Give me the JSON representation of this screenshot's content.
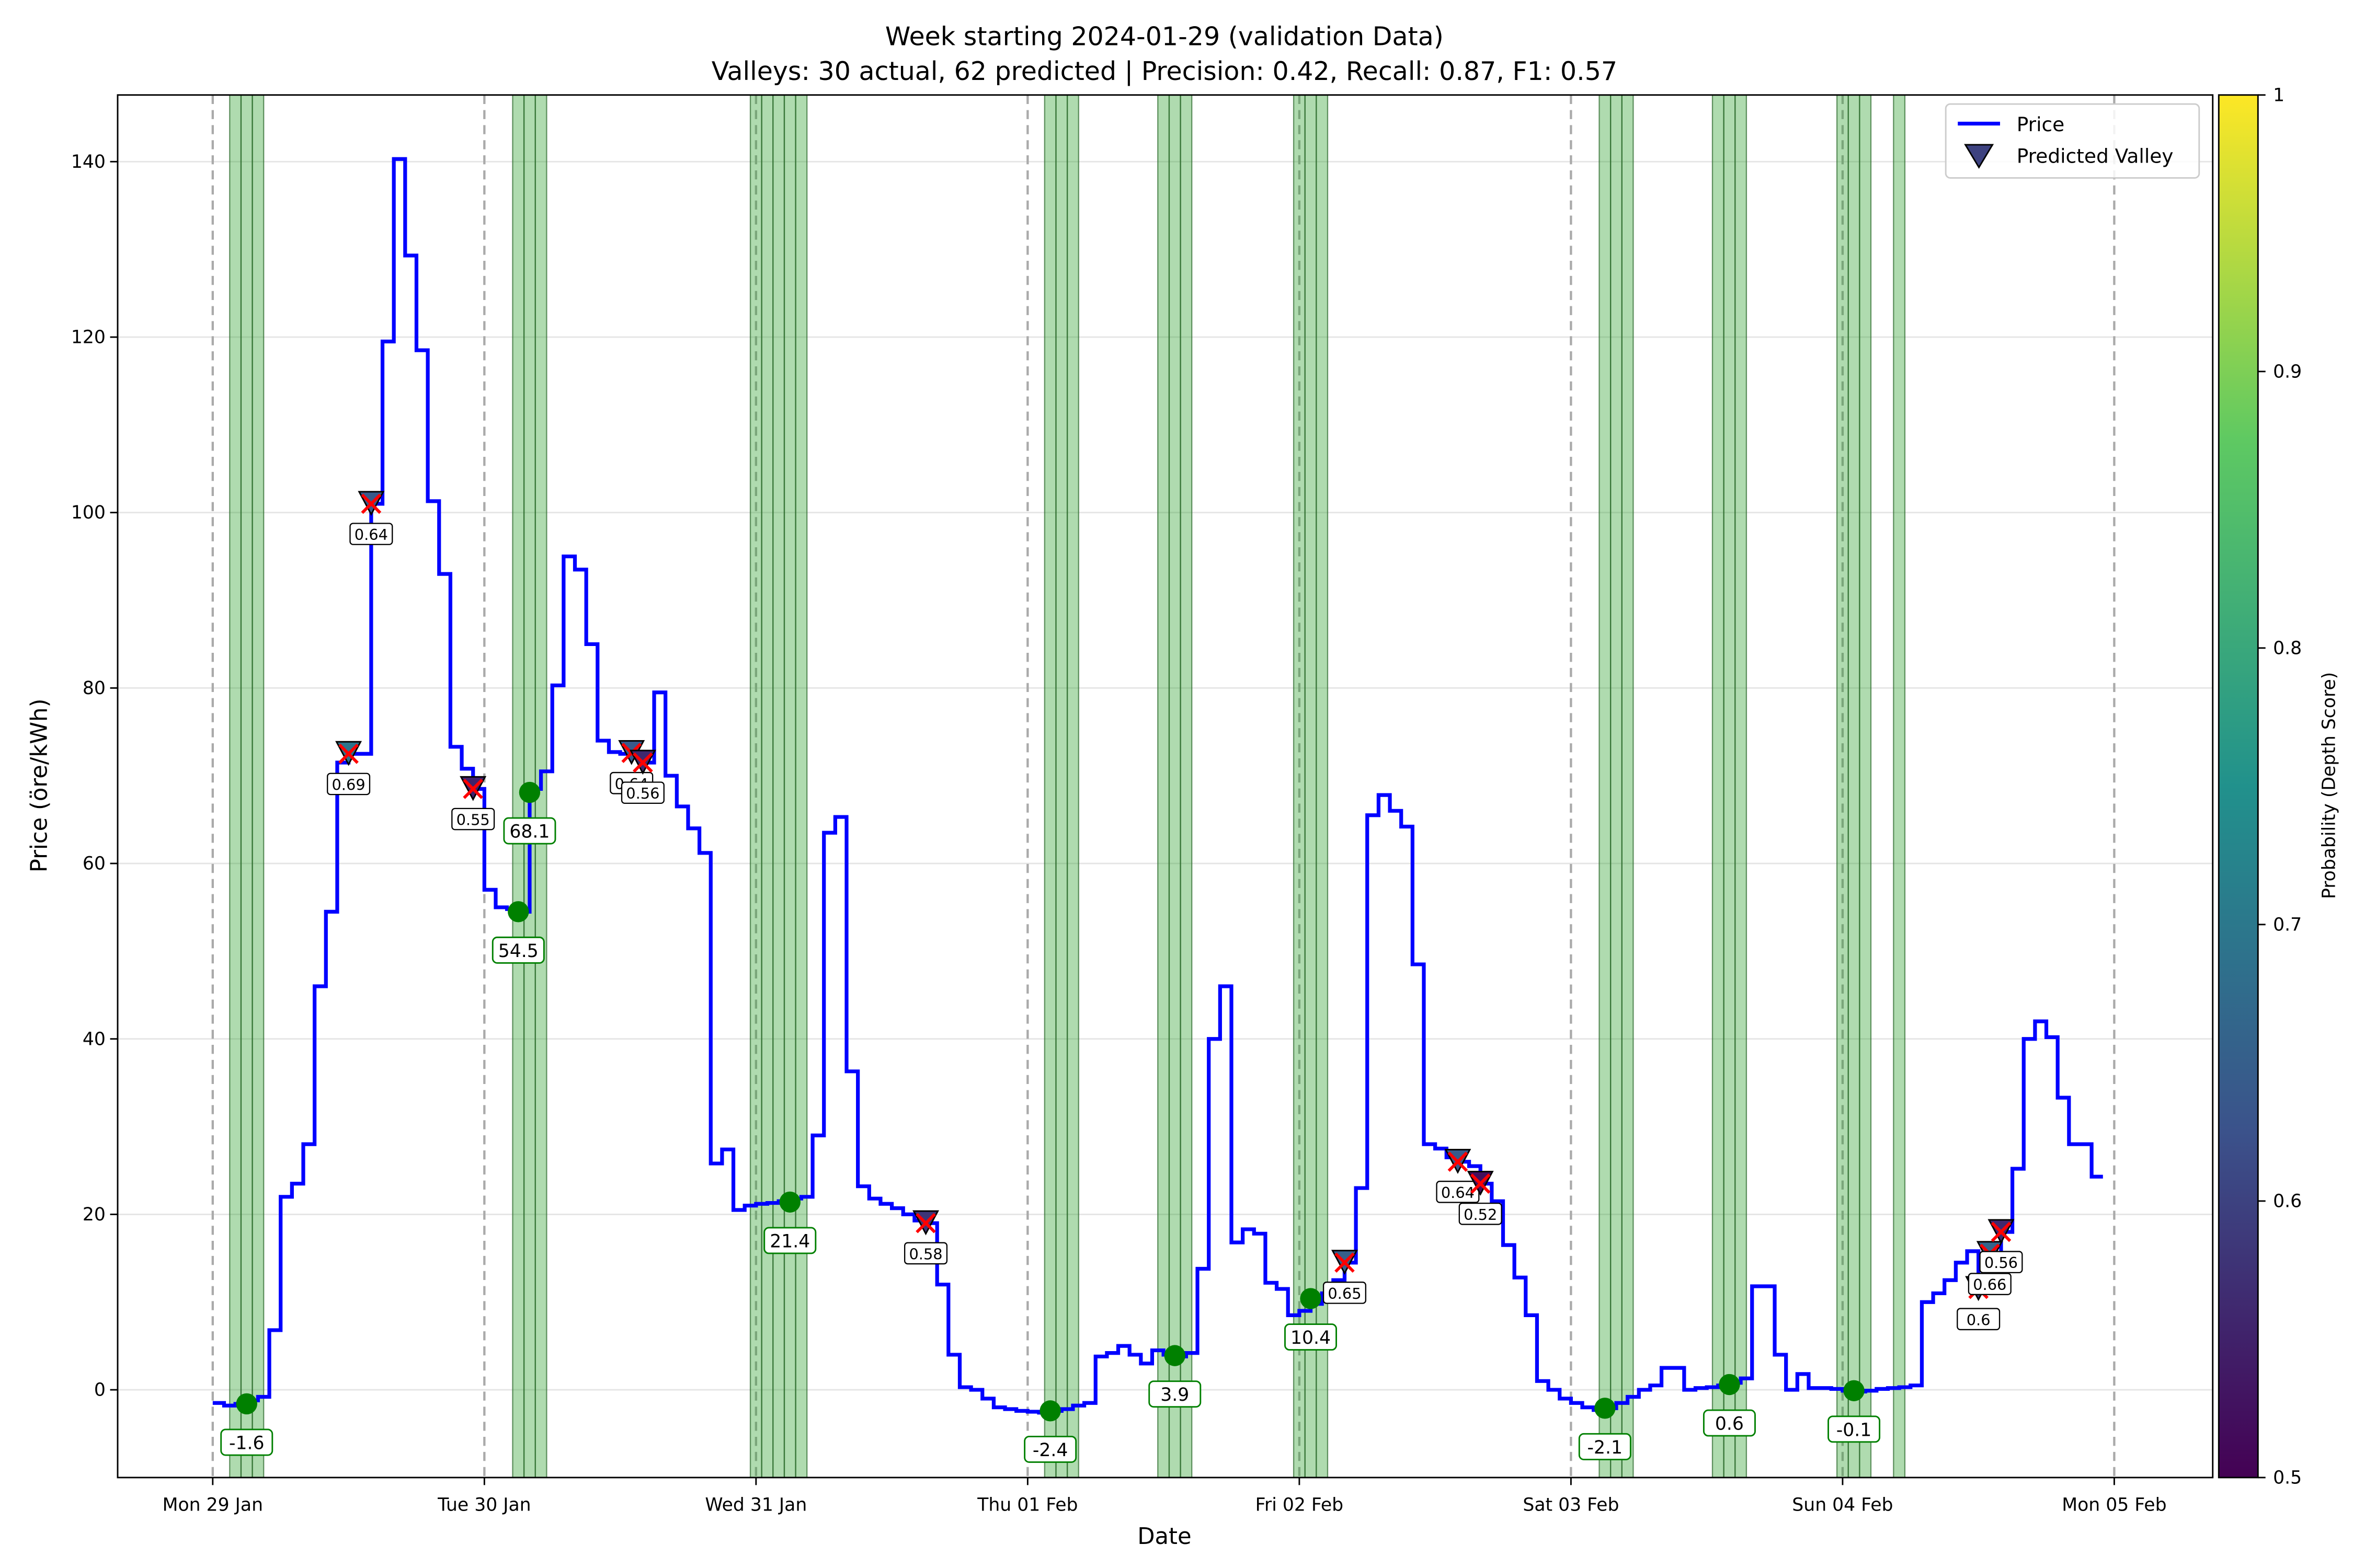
{
  "chart_data": {
    "type": "step",
    "title": "Week starting 2024-01-29 (validation Data)",
    "subtitle": "Valleys: 30 actual, 62 predicted | Precision: 0.42, Recall: 0.87, F1: 0.57",
    "x_label": "Date",
    "y_label": "Price (öre/kWh)",
    "xlim": [
      -8.4,
      176.7
    ],
    "xticks": [
      {
        "value": 0,
        "label": "Mon 29 Jan"
      },
      {
        "value": 24,
        "label": "Tue 30 Jan"
      },
      {
        "value": 48,
        "label": "Wed 31 Jan"
      },
      {
        "value": 72,
        "label": "Thu 01 Feb"
      },
      {
        "value": 96,
        "label": "Fri 02 Feb"
      },
      {
        "value": 120,
        "label": "Sat 03 Feb"
      },
      {
        "value": 144,
        "label": "Sun 04 Feb"
      },
      {
        "value": 168,
        "label": "Mon 05 Feb"
      }
    ],
    "ylim": [
      -10,
      147.6
    ],
    "yticks": [
      0,
      20,
      40,
      60,
      80,
      100,
      120,
      140
    ],
    "grid": "y",
    "day_lines": true,
    "legend": "upper right",
    "x": [
      0,
      1,
      2,
      3,
      4,
      5,
      6,
      7,
      8,
      9,
      10,
      11,
      12,
      13,
      14,
      15,
      16,
      17,
      18,
      19,
      20,
      21,
      22,
      23,
      24,
      25,
      26,
      27,
      28,
      29,
      30,
      31,
      32,
      33,
      34,
      35,
      36,
      37,
      38,
      39,
      40,
      41,
      42,
      43,
      44,
      45,
      46,
      47,
      48,
      49,
      50,
      51,
      52,
      53,
      54,
      55,
      56,
      57,
      58,
      59,
      60,
      61,
      62,
      63,
      64,
      65,
      66,
      67,
      68,
      69,
      70,
      71,
      72,
      73,
      74,
      75,
      76,
      77,
      78,
      79,
      80,
      81,
      82,
      83,
      84,
      85,
      86,
      87,
      88,
      89,
      90,
      91,
      92,
      93,
      94,
      95,
      96,
      97,
      98,
      99,
      100,
      101,
      102,
      103,
      104,
      105,
      106,
      107,
      108,
      109,
      110,
      111,
      112,
      113,
      114,
      115,
      116,
      117,
      118,
      119,
      120,
      121,
      122,
      123,
      124,
      125,
      126,
      127,
      128,
      129,
      130,
      131,
      132,
      133,
      134,
      135,
      136,
      137,
      138,
      139,
      140,
      141,
      142,
      143,
      144,
      145,
      146,
      147,
      148,
      149,
      150,
      151,
      152,
      153,
      154,
      155,
      156,
      157,
      158,
      159,
      160,
      161,
      162,
      163,
      164,
      165,
      166
    ],
    "series": [
      {
        "name": "Price",
        "color": "#0000ff",
        "values": [
          -1.5,
          -1.8,
          -1.6,
          -1.2,
          -0.8,
          6.8,
          22,
          23.5,
          28,
          46,
          54.5,
          71.5,
          72.5,
          72.5,
          101,
          119.5,
          140.3,
          129.3,
          118.5,
          101.3,
          93,
          73.3,
          70.8,
          68.5,
          57,
          55,
          54.8,
          54.5,
          68.5,
          70.5,
          80.3,
          95,
          93.5,
          85,
          74,
          72.7,
          72.5,
          72.6,
          71.5,
          79.5,
          70,
          66.5,
          64,
          61.2,
          25.8,
          27.4,
          20.5,
          21,
          21.2,
          21.3,
          21.5,
          21.8,
          22,
          29,
          63.5,
          65.3,
          36.3,
          23.2,
          21.8,
          21.2,
          20.7,
          20,
          19.3,
          19,
          12,
          4,
          0.3,
          0,
          -1,
          -2,
          -2.2,
          -2.4,
          -2.5,
          -2.6,
          -2.4,
          -2.2,
          -1.8,
          -1.5,
          3.8,
          4.2,
          5,
          4,
          3,
          4.5,
          4,
          3.8,
          4.2,
          13.8,
          40,
          46,
          16.8,
          18.3,
          17.8,
          12.2,
          11.5,
          8.5,
          9,
          9.8,
          11,
          12.5,
          14.5,
          23,
          65.5,
          67.8,
          66,
          64.2,
          48.5,
          28,
          27.5,
          26.5,
          26,
          25.5,
          23.5,
          21.5,
          16.5,
          12.8,
          8.5,
          1,
          0,
          -1,
          -1.5,
          -2,
          -2.3,
          -2.1,
          -1.5,
          -0.8,
          0,
          0.5,
          2.5,
          2.5,
          0,
          0.2,
          0.3,
          0.5,
          0.8,
          1.3,
          11.8,
          11.8,
          4,
          0,
          1.8,
          0.2,
          0.2,
          0.1,
          -0.1,
          -0.2,
          -0.1,
          0.1,
          0.2,
          0.3,
          0.5,
          10,
          11,
          12.5,
          14.5,
          15.8,
          11.5,
          15.5,
          18,
          25.2,
          40,
          42,
          40.2,
          33.3,
          28,
          28,
          24.3
        ]
      }
    ],
    "actual_valleys": {
      "color": "#2ca02c",
      "x": [
        2,
        3,
        4,
        27,
        28,
        29,
        48,
        49,
        50,
        51,
        52,
        74,
        75,
        76,
        84,
        85,
        86,
        96,
        97,
        98,
        123,
        124,
        125,
        133,
        134,
        135,
        144,
        145,
        146,
        149
      ]
    },
    "valley_markers": {
      "color": "#008000",
      "x": [
        3,
        27,
        28,
        51,
        74,
        85,
        97,
        123,
        134,
        145
      ],
      "values": [
        -1.6,
        54.5,
        68.1,
        21.4,
        -2.4,
        3.9,
        10.4,
        -2.1,
        0.6,
        -0.1
      ]
    },
    "predicted": {
      "name": "Predicted Valley",
      "cross_color": "#ff0000",
      "x": [
        12,
        14,
        23,
        37,
        38,
        63,
        100,
        110,
        112,
        156,
        157,
        158
      ],
      "values": [
        72.5,
        101,
        68.5,
        72.6,
        71.5,
        19,
        14.5,
        26,
        23.5,
        11.5,
        15.5,
        18
      ],
      "probability": [
        0.69,
        0.64,
        0.55,
        0.64,
        0.56,
        0.58,
        0.65,
        0.64,
        0.52,
        0.6,
        0.66,
        0.56
      ]
    },
    "colorbar": {
      "label": "Probability (Depth Score)",
      "colormap": "viridis",
      "clim": [
        0.5,
        1.0
      ],
      "ticks": [
        0.5,
        0.6,
        0.7,
        0.8,
        0.9,
        1.0
      ]
    }
  }
}
